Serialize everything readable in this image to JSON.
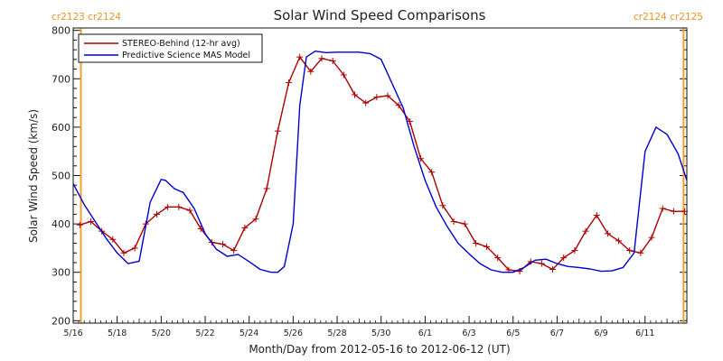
{
  "chart_data": {
    "type": "line",
    "title": "Solar Wind Speed Comparisons",
    "xlabel": "Month/Day from 2012-05-16 to 2012-06-12 (UT)",
    "ylabel": "Solar Wind Speed (km/s)",
    "xlim": [
      0,
      27.9
    ],
    "ylim": [
      195,
      805
    ],
    "x_tick_labels": [
      {
        "day": 0,
        "label": "5/16"
      },
      {
        "day": 2,
        "label": "5/18"
      },
      {
        "day": 4,
        "label": "5/20"
      },
      {
        "day": 6,
        "label": "5/22"
      },
      {
        "day": 8,
        "label": "5/24"
      },
      {
        "day": 10,
        "label": "5/26"
      },
      {
        "day": 12,
        "label": "5/28"
      },
      {
        "day": 14,
        "label": "5/30"
      },
      {
        "day": 16,
        "label": "6/1"
      },
      {
        "day": 18,
        "label": "6/3"
      },
      {
        "day": 20,
        "label": "6/5"
      },
      {
        "day": 22,
        "label": "6/7"
      },
      {
        "day": 24,
        "label": "6/9"
      },
      {
        "day": 26,
        "label": "6/11"
      }
    ],
    "y_ticks": [
      200,
      300,
      400,
      500,
      600,
      700,
      800
    ],
    "carrington_markers": [
      {
        "day": 0.35,
        "color": "#f0a030",
        "label": "cr2123 cr2124",
        "side": "left"
      },
      {
        "day": 27.75,
        "color": "#f0a030",
        "label": "cr2124 cr2125",
        "side": "right"
      }
    ],
    "legend": {
      "placement": "top-left"
    },
    "series": [
      {
        "name": "STEREO-Behind (12-hr avg)",
        "color": "#aa0000",
        "marker": "plus",
        "x": [
          0.3,
          0.8,
          1.3,
          1.8,
          2.3,
          2.8,
          3.3,
          3.8,
          4.3,
          4.8,
          5.3,
          5.8,
          6.3,
          6.8,
          7.3,
          7.8,
          8.3,
          8.8,
          9.3,
          9.8,
          10.3,
          10.8,
          11.3,
          11.8,
          12.3,
          12.8,
          13.3,
          13.8,
          14.3,
          14.8,
          15.3,
          15.8,
          16.3,
          16.8,
          17.3,
          17.8,
          18.3,
          18.8,
          19.3,
          19.8,
          20.3,
          20.8,
          21.3,
          21.8,
          22.3,
          22.8,
          23.3,
          23.8,
          24.3,
          24.8,
          25.3,
          25.8,
          26.3,
          26.8,
          27.3,
          27.8
        ],
        "y": [
          398,
          405,
          385,
          368,
          340,
          350,
          400,
          420,
          435,
          435,
          428,
          390,
          362,
          358,
          345,
          392,
          410,
          473,
          592,
          692,
          745,
          715,
          742,
          737,
          708,
          667,
          650,
          662,
          665,
          645,
          612,
          535,
          507,
          438,
          405,
          400,
          360,
          353,
          330,
          305,
          302,
          322,
          318,
          306,
          330,
          345,
          385,
          418,
          380,
          365,
          345,
          340,
          372,
          432,
          426,
          426
        ]
      },
      {
        "name": "Predictive Science MAS Model",
        "color": "#0000cc",
        "marker": "none",
        "x": [
          0,
          0.5,
          1,
          1.5,
          2,
          2.5,
          3,
          3.5,
          4,
          4.2,
          4.6,
          5,
          5.5,
          6,
          6.5,
          7,
          7.5,
          8,
          8.5,
          9,
          9.3,
          9.6,
          10,
          10.3,
          10.6,
          11,
          11.5,
          12,
          12.5,
          13,
          13.5,
          14,
          14.5,
          15,
          15.5,
          16,
          16.5,
          17,
          17.5,
          18,
          18.5,
          19,
          19.5,
          20,
          20.5,
          21,
          21.5,
          22,
          22.5,
          23,
          23.5,
          24,
          24.5,
          25,
          25.5,
          26,
          26.5,
          27,
          27.5,
          27.9
        ],
        "y": [
          483,
          440,
          405,
          370,
          340,
          318,
          323,
          445,
          492,
          490,
          473,
          465,
          432,
          380,
          348,
          333,
          337,
          322,
          306,
          300,
          300,
          312,
          400,
          645,
          745,
          757,
          754,
          755,
          755,
          755,
          752,
          740,
          690,
          640,
          560,
          490,
          435,
          395,
          360,
          338,
          318,
          305,
          300,
          300,
          310,
          325,
          327,
          318,
          312,
          310,
          307,
          302,
          303,
          310,
          340,
          550,
          600,
          585,
          545,
          490
        ]
      }
    ]
  }
}
